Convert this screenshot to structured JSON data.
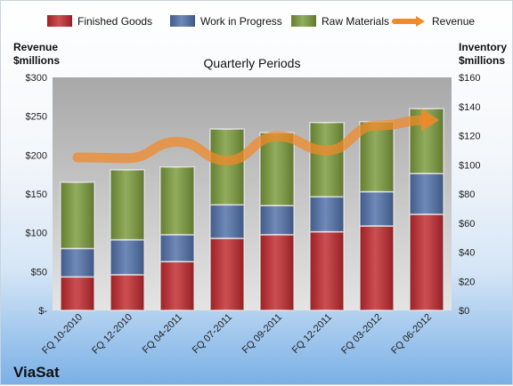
{
  "brand": "ViaSat",
  "chart_data": {
    "type": "bar",
    "stacked": true,
    "title": "Quarterly Periods",
    "ylabel_left": "Revenue\n$millions",
    "ylabel_right": "Inventory\n$millions",
    "categories": [
      "FQ 10-2010",
      "FQ 12-2010",
      "FQ 04-2011",
      "FQ 07-2011",
      "FQ 09-2011",
      "FQ 12-2011",
      "FQ 03-2012",
      "FQ 06-2012"
    ],
    "series": [
      {
        "name": "Finished Goods",
        "axis": "right",
        "color": "#c0272d",
        "values": [
          23,
          24.5,
          33.5,
          49.5,
          52,
          54,
          58,
          66
        ]
      },
      {
        "name": "Work in Progress",
        "axis": "right",
        "color": "#4f6fa8",
        "values": [
          19.5,
          24,
          18.5,
          23,
          20,
          24,
          23.5,
          28
        ]
      },
      {
        "name": "Raw Materials",
        "axis": "right",
        "color": "#7a9a3a",
        "values": [
          45.5,
          48,
          46.5,
          52,
          50,
          51,
          48,
          44.5
        ]
      },
      {
        "name": "Revenue",
        "axis": "left",
        "type": "line",
        "color": "#f08a2a",
        "values": [
          197,
          196,
          217,
          193,
          224,
          206,
          238,
          245
        ]
      }
    ],
    "left_axis": {
      "ylim": [
        0,
        300
      ],
      "ticks": [
        "$-",
        "$50",
        "$100",
        "$150",
        "$200",
        "$250",
        "$300"
      ]
    },
    "right_axis": {
      "ylim": [
        0,
        160
      ],
      "ticks": [
        "$0",
        "$20",
        "$40",
        "$60",
        "$80",
        "$100",
        "$120",
        "$140",
        "$160"
      ]
    },
    "legend_position": "top",
    "grid": false
  }
}
